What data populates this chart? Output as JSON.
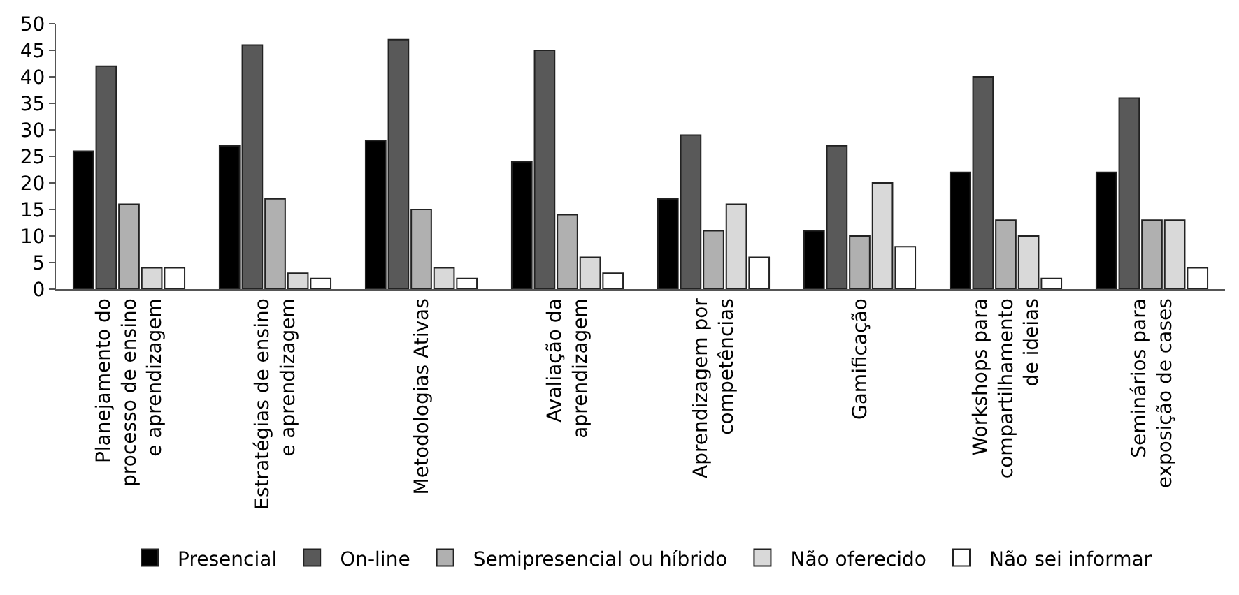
{
  "chart_data": {
    "type": "bar",
    "categories": [
      "Planejamento do\nprocesso de ensino\ne aprendizagem",
      "Estratégias de ensino\ne aprendizagem",
      "Metodologias Ativas",
      "Avaliação da\naprendizagem",
      "Aprendizagem por\ncompetências",
      "Gamificação",
      "Workshops para\ncompartilhamento\nde ideias",
      "Seminários para\nexposição de cases"
    ],
    "series": [
      {
        "name": "Presencial",
        "color": "#000000",
        "values": [
          26,
          27,
          28,
          24,
          17,
          11,
          22,
          22
        ]
      },
      {
        "name": "On-line",
        "color": "#595959",
        "values": [
          42,
          46,
          47,
          45,
          29,
          27,
          40,
          36
        ]
      },
      {
        "name": "Semipresencial ou híbrido",
        "color": "#b0b0b0",
        "values": [
          16,
          17,
          15,
          14,
          11,
          10,
          13,
          13
        ]
      },
      {
        "name": "Não oferecido",
        "color": "#d9d9d9",
        "values": [
          4,
          3,
          4,
          6,
          16,
          20,
          10,
          13
        ]
      },
      {
        "name": "Não sei informar",
        "color": "#ffffff",
        "values": [
          4,
          2,
          2,
          3,
          6,
          8,
          2,
          4
        ]
      }
    ],
    "ylim": [
      0,
      50
    ],
    "yticks": [
      0,
      5,
      10,
      15,
      20,
      25,
      30,
      35,
      40,
      45,
      50
    ],
    "legend": "bottom"
  }
}
